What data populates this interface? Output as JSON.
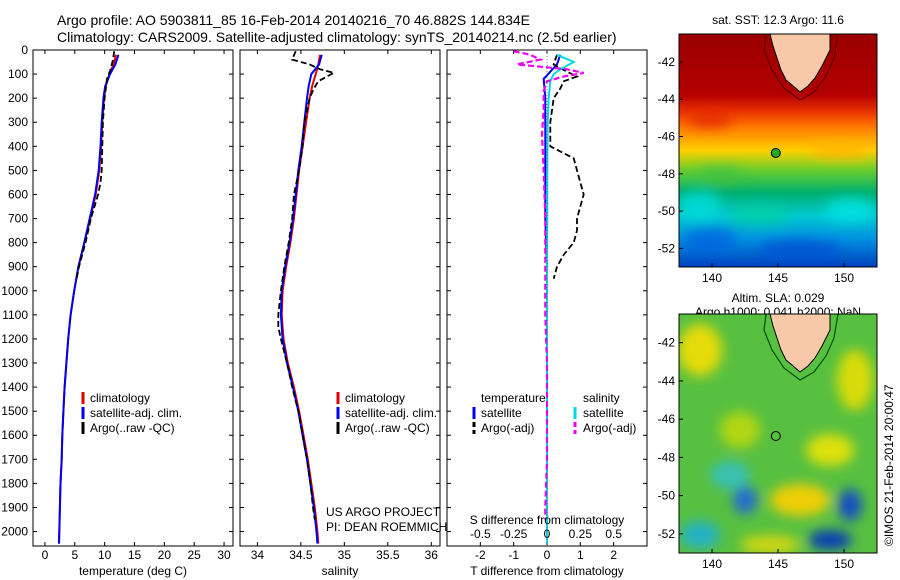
{
  "header": {
    "line1": "Argo profile: AO 5903811_85 16-Feb-2014 20140216_70 46.882S 144.834E",
    "line2": "Climatology: CARS2009. Satellite-adjusted climatology: synTS_20140214.nc (2.5d earlier)"
  },
  "depth_ticks": [
    "0",
    "100",
    "200",
    "300",
    "400",
    "500",
    "600",
    "700",
    "800",
    "900",
    "1000",
    "1100",
    "1200",
    "1300",
    "1400",
    "1500",
    "1600",
    "1700",
    "1800",
    "1900",
    "2000"
  ],
  "colors": {
    "climatology": "#dd0000",
    "satellite": "#0000ee",
    "argo": "#000000",
    "sat_salinity": "#00d8e8",
    "argo_salinity": "#ee00ee",
    "land": "#f7c9a8"
  },
  "chart_data": [
    {
      "type": "line",
      "name": "temperature-panel",
      "xlabel": "temperature (deg C)",
      "xticks": [
        "0",
        "5",
        "10",
        "15",
        "20",
        "25",
        "30"
      ],
      "xlim": [
        -2,
        31.5
      ],
      "ylim": [
        0,
        2060
      ],
      "y_reversed": true,
      "legend": [
        "climatology",
        "satellite-adj. clim.",
        "Argo(..raw -QC)"
      ],
      "legend_position": "lower-center",
      "series": [
        {
          "name": "climatology",
          "depth": [
            20,
            60,
            100,
            150,
            200,
            300,
            400,
            500,
            600,
            700,
            800,
            900,
            1000,
            1100,
            1200,
            1300,
            1400,
            1500,
            1600,
            1700,
            1800,
            1900,
            2000,
            2050
          ],
          "values": [
            11.9,
            11.5,
            10.8,
            10.2,
            9.9,
            9.6,
            9.4,
            9.1,
            8.5,
            7.6,
            6.6,
            5.6,
            4.9,
            4.3,
            3.9,
            3.6,
            3.3,
            3.1,
            2.9,
            2.8,
            2.6,
            2.5,
            2.4,
            2.35
          ]
        },
        {
          "name": "satellite-adj. clim.",
          "depth": [
            20,
            60,
            100,
            150,
            200,
            300,
            400,
            500,
            600,
            700,
            800,
            900,
            1000,
            1100,
            1200,
            1300,
            1400,
            1500,
            1600,
            1700,
            1800,
            1900,
            2000,
            2050
          ],
          "values": [
            12.3,
            11.8,
            10.9,
            10.1,
            9.8,
            9.5,
            9.3,
            9.0,
            8.4,
            7.5,
            6.6,
            5.6,
            4.9,
            4.3,
            3.9,
            3.6,
            3.3,
            3.1,
            2.9,
            2.8,
            2.6,
            2.5,
            2.4,
            2.35
          ]
        },
        {
          "name": "Argo(..raw -QC)",
          "depth": [
            5,
            40,
            80,
            120,
            200,
            300,
            400,
            500,
            550,
            600,
            650,
            700,
            800,
            900,
            950
          ],
          "values": [
            11.6,
            11.4,
            11.0,
            10.4,
            10.0,
            9.7,
            9.6,
            9.5,
            9.3,
            8.9,
            8.3,
            7.7,
            6.8,
            5.7,
            5.3
          ]
        }
      ]
    },
    {
      "type": "line",
      "name": "salinity-panel",
      "xlabel": "salinity",
      "xticks": [
        "34",
        "34.5",
        "35",
        "35.5",
        "36"
      ],
      "xlim": [
        33.8,
        36.1
      ],
      "ylim": [
        0,
        2060
      ],
      "y_reversed": true,
      "legend": [
        "climatology",
        "satellite-adj. clim.",
        "Argo(..raw -QC)"
      ],
      "legend_position": "lower-right",
      "annotation": [
        "US ARGO PROJECT",
        "PI: DEAN ROEMMICH"
      ],
      "series": [
        {
          "name": "climatology",
          "depth": [
            20,
            60,
            100,
            150,
            200,
            300,
            400,
            500,
            600,
            700,
            800,
            900,
            1000,
            1100,
            1200,
            1300,
            1400,
            1500,
            1600,
            1700,
            1800,
            1900,
            2000,
            2050
          ],
          "values": [
            34.72,
            34.7,
            34.67,
            34.63,
            34.6,
            34.56,
            34.52,
            34.48,
            34.45,
            34.42,
            34.38,
            34.33,
            34.29,
            34.28,
            34.3,
            34.35,
            34.42,
            34.48,
            34.53,
            34.58,
            34.62,
            34.66,
            34.69,
            34.7
          ]
        },
        {
          "name": "satellite-adj. clim.",
          "depth": [
            20,
            60,
            100,
            150,
            200,
            300,
            400,
            500,
            600,
            700,
            800,
            900,
            1000,
            1100,
            1200,
            1300,
            1400,
            1500,
            1600,
            1700,
            1800,
            1900,
            2000,
            2050
          ],
          "values": [
            34.74,
            34.71,
            34.62,
            34.59,
            34.57,
            34.54,
            34.51,
            34.47,
            34.44,
            34.41,
            34.37,
            34.32,
            34.28,
            34.27,
            34.29,
            34.34,
            34.41,
            34.47,
            34.52,
            34.57,
            34.61,
            34.65,
            34.68,
            34.69
          ]
        },
        {
          "name": "Argo(..raw -QC)",
          "depth": [
            5,
            40,
            60,
            80,
            95,
            110,
            130,
            160,
            200,
            250,
            300,
            400,
            500,
            600,
            700,
            800,
            900,
            1000,
            1100,
            1150,
            1200,
            1300,
            1400,
            1500,
            1600,
            1700,
            1800,
            1900,
            1950
          ],
          "values": [
            34.44,
            34.4,
            34.6,
            34.72,
            34.88,
            34.8,
            34.7,
            34.65,
            34.6,
            34.57,
            34.54,
            34.52,
            34.48,
            34.42,
            34.4,
            34.36,
            34.31,
            34.27,
            34.24,
            34.24,
            34.27,
            34.34,
            34.4,
            34.47,
            34.52,
            34.57,
            34.61,
            34.64,
            34.66
          ]
        }
      ]
    },
    {
      "type": "line",
      "name": "difference-panel",
      "xlabel": "T difference from climatology",
      "xticks": [
        "-2",
        "-1",
        "0",
        "1",
        "2"
      ],
      "xlim": [
        -3,
        3
      ],
      "top_label": "S difference from climatology",
      "top_ticks": [
        "-0.5",
        "-0.25",
        "0",
        "0.25",
        "0.5"
      ],
      "ylim": [
        0,
        2060
      ],
      "y_reversed": true,
      "legend_titles": [
        "temperature",
        "salinity"
      ],
      "legend": [
        "satellite",
        "Argo(-adj)",
        "satellite",
        "Argo(-adj)"
      ],
      "legend_position": "lower-center",
      "series": [
        {
          "name": "satellite",
          "depth": [
            20,
            60,
            90,
            120,
            200,
            300,
            500,
            700,
            900,
            1100,
            1300,
            1500,
            1700,
            1900,
            2050
          ],
          "values": [
            0.4,
            0.3,
            0.1,
            -0.1,
            -0.05,
            -0.05,
            -0.05,
            -0.05,
            0.0,
            0.0,
            0.0,
            0.0,
            0.0,
            0.0,
            0.0
          ]
        },
        {
          "name": "Argo(-adj)",
          "depth": [
            20,
            60,
            90,
            110,
            130,
            160,
            200,
            300,
            400,
            450,
            500,
            550,
            600,
            650,
            700,
            750,
            800,
            850,
            900,
            950
          ],
          "values": [
            0.3,
            0.2,
            0.6,
            0.9,
            0.5,
            0.4,
            0.2,
            0.1,
            0.1,
            0.8,
            0.9,
            1.0,
            1.1,
            1.0,
            0.9,
            0.9,
            0.8,
            0.5,
            0.3,
            0.2
          ]
        },
        {
          "name": "sat. salinity",
          "depth": [
            20,
            50,
            80,
            100,
            130,
            200,
            300,
            500,
            700,
            900,
            1100,
            1300,
            1500,
            1700,
            1900,
            2050
          ],
          "values": [
            0.3,
            0.8,
            0.4,
            0.2,
            0.1,
            0.05,
            0.02,
            0.01,
            0.01,
            0.0,
            0.0,
            0.0,
            0.0,
            0.0,
            0.0,
            0.0
          ]
        },
        {
          "name": "Argo salinity",
          "depth": [
            5,
            20,
            40,
            60,
            80,
            95,
            110,
            130,
            170,
            250,
            350,
            500,
            700,
            900,
            1100,
            1300,
            1500,
            1700,
            1900,
            1950
          ],
          "values": [
            -1.0,
            -0.5,
            -0.2,
            -0.9,
            0.6,
            1.1,
            0.5,
            0.0,
            -0.1,
            -0.1,
            -0.15,
            -0.1,
            -0.05,
            -0.05,
            -0.05,
            0.0,
            0.0,
            0.0,
            -0.05,
            -0.05
          ]
        }
      ]
    },
    {
      "type": "heatmap",
      "name": "sst-map",
      "title": "sat. SST: 12.3 Argo: 11.6",
      "xticks": [
        "140",
        "145",
        "150"
      ],
      "yticks": [
        "-42",
        "-44",
        "-46",
        "-48",
        "-50",
        "-52"
      ],
      "xlim": [
        137.5,
        152.5
      ],
      "ylim": [
        -53,
        -40.5
      ],
      "marker": {
        "lon": 144.834,
        "lat": -46.882
      }
    },
    {
      "type": "heatmap",
      "name": "sla-map",
      "title_line1": "Altim. SLA: 0.029",
      "title_line2": "Argo h1000: 0.041 h2000: NaN",
      "xticks": [
        "140",
        "145",
        "150"
      ],
      "yticks": [
        "-42",
        "-44",
        "-46",
        "-48",
        "-50",
        "-52"
      ],
      "xlim": [
        137.5,
        152.5
      ],
      "ylim": [
        -53,
        -40.5
      ],
      "marker": {
        "lon": 144.834,
        "lat": -46.882
      }
    }
  ],
  "side_label": "©IMOS 21-Feb-2014 20:00:47"
}
